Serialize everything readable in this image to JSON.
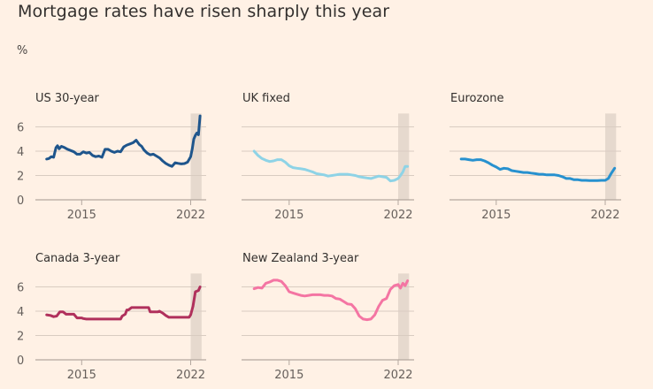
{
  "header": {
    "title": "Mortgage rates have risen sharply this year",
    "unit": "%"
  },
  "chart_data": [
    {
      "type": "line",
      "title": "US 30-year",
      "color": "#1e558c",
      "xlabel": "",
      "ylabel": "%",
      "xlim": [
        2012,
        2023
      ],
      "ylim": [
        0,
        7
      ],
      "yticks": [
        0,
        2,
        4,
        6
      ],
      "xticks": [
        2015,
        2022
      ],
      "xtick_labels": [
        "2015",
        "2022"
      ],
      "shaded_region": [
        2022,
        2022.7
      ],
      "grid": true,
      "x": [
        2012.75,
        2012.9,
        2013.05,
        2013.2,
        2013.35,
        2013.45,
        2013.55,
        2013.7,
        2013.9,
        2014.1,
        2014.3,
        2014.5,
        2014.7,
        2014.9,
        2015.1,
        2015.3,
        2015.5,
        2015.7,
        2015.9,
        2016.1,
        2016.3,
        2016.5,
        2016.7,
        2016.9,
        2017.1,
        2017.3,
        2017.5,
        2017.7,
        2017.9,
        2018.1,
        2018.3,
        2018.5,
        2018.7,
        2018.85,
        2019.0,
        2019.2,
        2019.4,
        2019.6,
        2019.8,
        2020.0,
        2020.2,
        2020.4,
        2020.6,
        2020.8,
        2021.0,
        2021.2,
        2021.4,
        2021.6,
        2021.8,
        2022.0,
        2022.1,
        2022.2,
        2022.3,
        2022.4,
        2022.5,
        2022.6
      ],
      "values": [
        3.35,
        3.4,
        3.55,
        3.5,
        4.3,
        4.45,
        4.2,
        4.4,
        4.3,
        4.15,
        4.05,
        3.95,
        3.75,
        3.75,
        3.95,
        3.85,
        3.9,
        3.65,
        3.55,
        3.6,
        3.5,
        4.15,
        4.15,
        4.0,
        3.9,
        4.0,
        3.95,
        4.35,
        4.5,
        4.6,
        4.7,
        4.9,
        4.55,
        4.4,
        4.1,
        3.85,
        3.7,
        3.75,
        3.6,
        3.45,
        3.2,
        3.0,
        2.85,
        2.75,
        3.05,
        3.0,
        2.95,
        2.98,
        3.1,
        3.55,
        4.2,
        5.0,
        5.3,
        5.5,
        5.35,
        6.9
      ]
    },
    {
      "type": "line",
      "title": "UK fixed",
      "color": "#8ed3e6",
      "xlabel": "",
      "ylabel": "%",
      "xlim": [
        2012,
        2023
      ],
      "ylim": [
        0,
        7
      ],
      "yticks": [
        0,
        2,
        4,
        6
      ],
      "xticks": [
        2015,
        2022
      ],
      "xtick_labels": [
        "2015",
        "2022"
      ],
      "shaded_region": [
        2022,
        2022.7
      ],
      "grid": true,
      "x": [
        2012.75,
        2013.0,
        2013.25,
        2013.5,
        2013.75,
        2014.0,
        2014.25,
        2014.5,
        2014.75,
        2015.0,
        2015.25,
        2015.5,
        2015.75,
        2016.0,
        2016.25,
        2016.5,
        2016.75,
        2017.0,
        2017.25,
        2017.5,
        2017.75,
        2018.0,
        2018.25,
        2018.5,
        2018.75,
        2019.0,
        2019.25,
        2019.5,
        2019.75,
        2020.0,
        2020.25,
        2020.5,
        2020.75,
        2021.0,
        2021.25,
        2021.5,
        2021.75,
        2022.0,
        2022.15,
        2022.3,
        2022.45,
        2022.6
      ],
      "values": [
        4.0,
        3.65,
        3.4,
        3.25,
        3.15,
        3.2,
        3.3,
        3.3,
        3.1,
        2.8,
        2.65,
        2.6,
        2.55,
        2.5,
        2.4,
        2.3,
        2.15,
        2.1,
        2.05,
        1.95,
        2.0,
        2.05,
        2.1,
        2.1,
        2.1,
        2.05,
        2.0,
        1.9,
        1.85,
        1.8,
        1.75,
        1.85,
        1.95,
        1.9,
        1.85,
        1.55,
        1.6,
        1.75,
        2.0,
        2.3,
        2.75,
        2.75
      ]
    },
    {
      "type": "line",
      "title": "Eurozone",
      "color": "#2791cf",
      "xlabel": "",
      "ylabel": "%",
      "xlim": [
        2012,
        2023
      ],
      "ylim": [
        0,
        7
      ],
      "yticks": [
        0,
        2,
        4,
        6
      ],
      "xticks": [
        2015,
        2022
      ],
      "xtick_labels": [
        "2015",
        "2022"
      ],
      "shaded_region": [
        2022,
        2022.7
      ],
      "grid": true,
      "x": [
        2012.75,
        2013.0,
        2013.25,
        2013.5,
        2013.75,
        2014.0,
        2014.25,
        2014.5,
        2014.75,
        2015.0,
        2015.25,
        2015.5,
        2015.75,
        2016.0,
        2016.25,
        2016.5,
        2016.75,
        2017.0,
        2017.25,
        2017.5,
        2017.75,
        2018.0,
        2018.25,
        2018.5,
        2018.75,
        2019.0,
        2019.25,
        2019.5,
        2019.75,
        2020.0,
        2020.25,
        2020.5,
        2020.75,
        2021.0,
        2021.25,
        2021.5,
        2021.75,
        2022.0,
        2022.2,
        2022.4,
        2022.6
      ],
      "values": [
        3.35,
        3.35,
        3.3,
        3.25,
        3.3,
        3.3,
        3.2,
        3.05,
        2.85,
        2.7,
        2.5,
        2.6,
        2.55,
        2.4,
        2.35,
        2.3,
        2.25,
        2.25,
        2.2,
        2.15,
        2.1,
        2.1,
        2.05,
        2.05,
        2.05,
        2.0,
        1.9,
        1.75,
        1.75,
        1.65,
        1.65,
        1.6,
        1.6,
        1.58,
        1.58,
        1.58,
        1.6,
        1.6,
        1.75,
        2.2,
        2.6
      ]
    },
    {
      "type": "line",
      "title": "Canada 3-year",
      "color": "#b0305c",
      "xlabel": "",
      "ylabel": "%",
      "xlim": [
        2012,
        2023
      ],
      "ylim": [
        0,
        7
      ],
      "yticks": [
        0,
        2,
        4,
        6
      ],
      "xticks": [
        2015,
        2022
      ],
      "xtick_labels": [
        "2015",
        "2022"
      ],
      "shaded_region": [
        2022,
        2022.7
      ],
      "grid": true,
      "x": [
        2012.75,
        2013.0,
        2013.2,
        2013.4,
        2013.6,
        2013.8,
        2014.0,
        2014.2,
        2014.3,
        2014.5,
        2014.7,
        2014.9,
        2015.0,
        2015.1,
        2015.3,
        2015.5,
        2016.0,
        2016.5,
        2017.0,
        2017.5,
        2017.6,
        2017.8,
        2017.9,
        2018.0,
        2018.2,
        2018.4,
        2018.7,
        2019.0,
        2019.3,
        2019.4,
        2019.6,
        2019.9,
        2020.0,
        2020.2,
        2020.4,
        2020.6,
        2020.8,
        2021.0,
        2021.5,
        2021.9,
        2022.0,
        2022.15,
        2022.3,
        2022.5,
        2022.6
      ],
      "values": [
        3.7,
        3.65,
        3.55,
        3.6,
        3.95,
        3.95,
        3.75,
        3.75,
        3.75,
        3.75,
        3.45,
        3.45,
        3.45,
        3.4,
        3.35,
        3.35,
        3.35,
        3.35,
        3.35,
        3.35,
        3.6,
        3.75,
        4.1,
        4.1,
        4.3,
        4.3,
        4.3,
        4.3,
        4.3,
        3.95,
        3.95,
        3.95,
        4.0,
        3.85,
        3.65,
        3.5,
        3.5,
        3.5,
        3.5,
        3.5,
        3.7,
        4.4,
        5.6,
        5.7,
        6.0
      ]
    },
    {
      "type": "line",
      "title": "New Zealand 3-year",
      "color": "#f475a3",
      "xlabel": "",
      "ylabel": "%",
      "xlim": [
        2012,
        2023
      ],
      "ylim": [
        0,
        7
      ],
      "yticks": [
        0,
        2,
        4,
        6
      ],
      "xticks": [
        2015,
        2022
      ],
      "xtick_labels": [
        "2015",
        "2022"
      ],
      "shaded_region": [
        2022,
        2022.7
      ],
      "grid": true,
      "x": [
        2012.75,
        2013.0,
        2013.25,
        2013.5,
        2013.75,
        2014.0,
        2014.25,
        2014.5,
        2014.75,
        2015.0,
        2015.25,
        2015.5,
        2015.75,
        2016.0,
        2016.25,
        2016.5,
        2016.75,
        2017.0,
        2017.25,
        2017.5,
        2017.75,
        2018.0,
        2018.25,
        2018.5,
        2018.75,
        2019.0,
        2019.25,
        2019.5,
        2019.75,
        2020.0,
        2020.25,
        2020.5,
        2020.75,
        2021.0,
        2021.25,
        2021.5,
        2021.75,
        2022.0,
        2022.15,
        2022.3,
        2022.45,
        2022.6
      ],
      "values": [
        5.85,
        5.95,
        5.9,
        6.3,
        6.4,
        6.55,
        6.55,
        6.45,
        6.1,
        5.6,
        5.5,
        5.4,
        5.3,
        5.25,
        5.3,
        5.35,
        5.35,
        5.35,
        5.3,
        5.3,
        5.25,
        5.05,
        5.0,
        4.8,
        4.6,
        4.55,
        4.2,
        3.6,
        3.35,
        3.3,
        3.35,
        3.7,
        4.4,
        4.9,
        5.05,
        5.8,
        6.1,
        6.2,
        5.9,
        6.3,
        6.1,
        6.5
      ]
    }
  ]
}
